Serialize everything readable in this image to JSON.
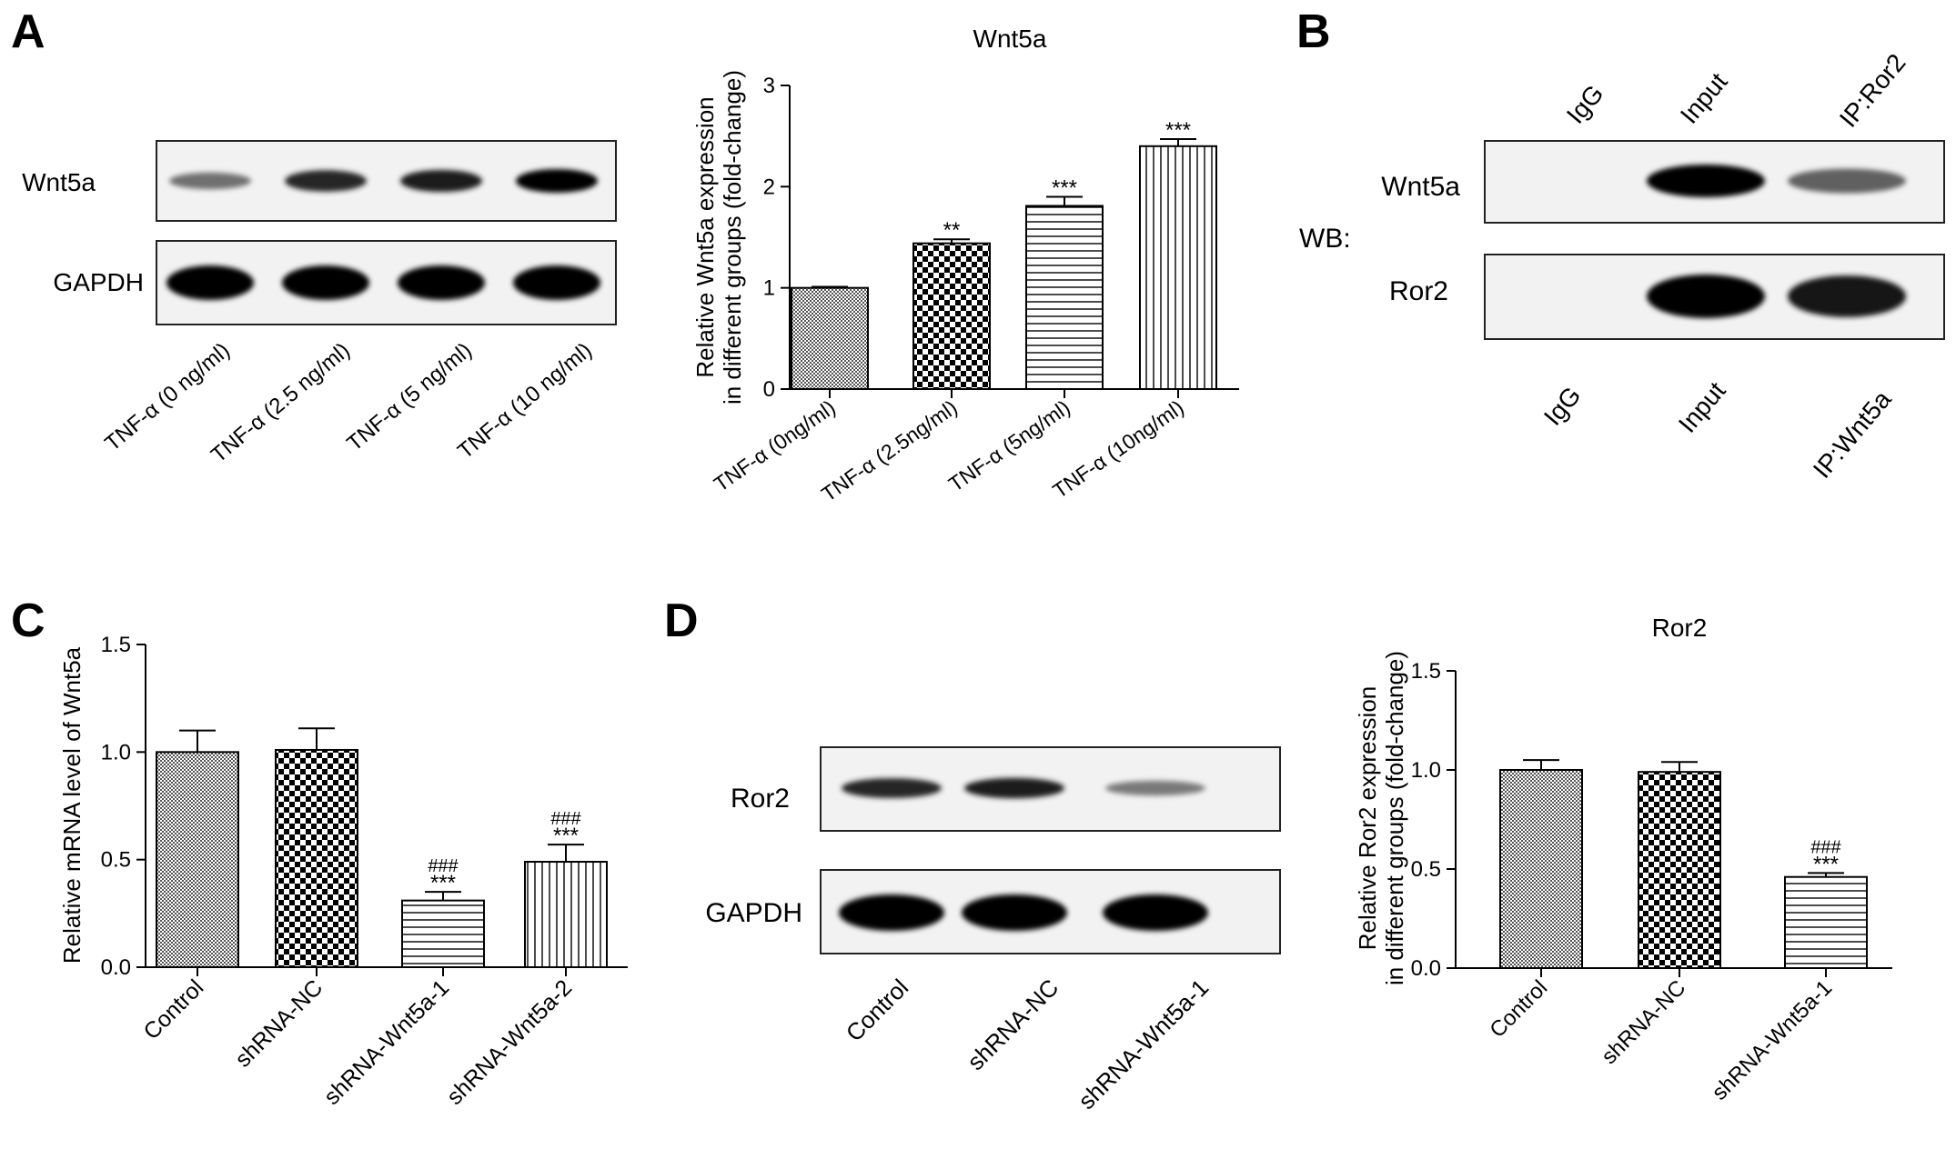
{
  "panel_labels": {
    "a": "A",
    "b": "B",
    "c": "C",
    "d": "D"
  },
  "blots": {
    "a_wnt5a_label": "Wnt5a",
    "a_gapdh_label": "GAPDH",
    "a_lanes": [
      "TNF-α (0 ng/ml)",
      "TNF-α (2.5 ng/ml)",
      "TNF-α (5 ng/ml)",
      "TNF-α (10 ng/ml)"
    ],
    "a_wnt5a_intensity": [
      0.35,
      0.8,
      0.85,
      1.0
    ],
    "a_gapdh_intensity": [
      1.0,
      1.0,
      1.0,
      1.0
    ],
    "b_top_lanes": [
      "IgG",
      "Input",
      "IP:Ror2"
    ],
    "b_bottom_lanes": [
      "IgG",
      "Input",
      "IP:Wnt5a"
    ],
    "b_wb_label": "WB:",
    "b_wnt5a_label": "Wnt5a",
    "b_ror2_label": "Ror2",
    "b_wnt5a_intensity": [
      0.0,
      1.0,
      0.45
    ],
    "b_ror2_intensity": [
      0.0,
      1.0,
      0.9
    ],
    "d_ror2_label": "Ror2",
    "d_gapdh_label": "GAPDH",
    "d_lanes": [
      "Control",
      "shRNA-NC",
      "shRNA-Wnt5a-1"
    ],
    "d_ror2_intensity": [
      0.8,
      0.85,
      0.3
    ],
    "d_gapdh_intensity": [
      1.0,
      1.0,
      1.0
    ]
  },
  "chart_data": [
    {
      "id": "a",
      "type": "bar",
      "title": "Wnt5a",
      "ylabel": [
        "Relative Wnt5a expression",
        "in different groups (fold-change)"
      ],
      "categories": [
        "TNF-α (0ng/ml)",
        "TNF-α (2.5ng/ml)",
        "TNF-α (5ng/ml)",
        "TNF-α (10ng/ml)"
      ],
      "values": [
        1.0,
        1.44,
        1.81,
        2.4
      ],
      "errors": [
        0.01,
        0.04,
        0.09,
        0.07
      ],
      "annotations": [
        [
          "",
          ""
        ],
        [
          "",
          "**"
        ],
        [
          "",
          "***"
        ],
        [
          "",
          "***"
        ]
      ],
      "patterns": [
        "dense",
        "checker",
        "hlines",
        "vlines"
      ],
      "ylim": [
        0,
        3
      ],
      "yticks": [
        "0",
        "1",
        "2",
        "3"
      ]
    },
    {
      "id": "c",
      "type": "bar",
      "title": "",
      "ylabel": [
        "Relative mRNA level of Wnt5a"
      ],
      "categories": [
        "Control",
        "shRNA-NC",
        "shRNA-Wnt5a-1",
        "shRNA-Wnt5a-2"
      ],
      "values": [
        1.0,
        1.01,
        0.31,
        0.49
      ],
      "errors": [
        0.1,
        0.1,
        0.04,
        0.08
      ],
      "annotations": [
        [
          "",
          ""
        ],
        [
          "",
          ""
        ],
        [
          "###",
          "***"
        ],
        [
          "###",
          "***"
        ]
      ],
      "patterns": [
        "dense",
        "checker",
        "hlines",
        "vlines"
      ],
      "ylim": [
        0,
        1.5
      ],
      "yticks": [
        "0.0",
        "0.5",
        "1.0",
        "1.5"
      ]
    },
    {
      "id": "d",
      "type": "bar",
      "title": "Ror2",
      "ylabel": [
        "Relative Ror2 expression",
        "in different groups (fold-change)"
      ],
      "categories": [
        "Control",
        "shRNA-NC",
        "shRNA-Wnt5a-1"
      ],
      "values": [
        1.0,
        0.99,
        0.46
      ],
      "errors": [
        0.05,
        0.05,
        0.02
      ],
      "annotations": [
        [
          "",
          ""
        ],
        [
          "",
          ""
        ],
        [
          "###",
          "***"
        ]
      ],
      "patterns": [
        "dense",
        "checker",
        "hlines"
      ],
      "ylim": [
        0,
        1.5
      ],
      "yticks": [
        "0.0",
        "0.5",
        "1.0",
        "1.5"
      ]
    }
  ]
}
